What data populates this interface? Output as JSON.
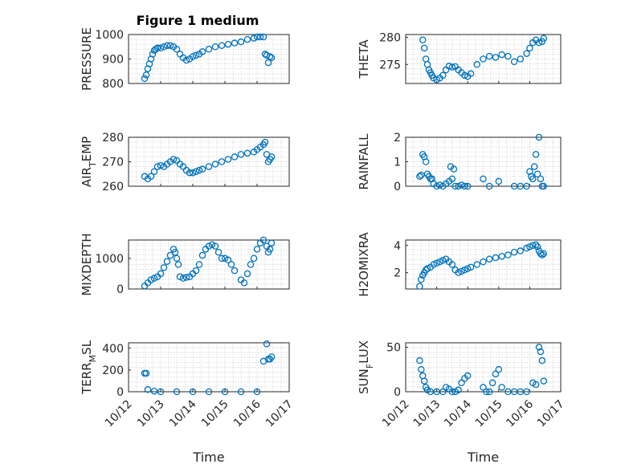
{
  "figure": {
    "title": "Figure 1 medium",
    "xlabel": "Time"
  },
  "colors": {
    "marker": "#0072BD",
    "axis": "#262626",
    "grid": "#d9d9d9"
  },
  "chart_data": [
    {
      "id": "pressure",
      "type": "scatter",
      "title": "Figure 1 medium",
      "ylabel": "PRESSURE",
      "ylim": [
        800,
        1000
      ],
      "yticks": [
        800,
        900,
        1000
      ],
      "xlim": [
        0,
        5
      ],
      "xtick_labels": [
        "10/12",
        "10/13",
        "10/14",
        "10/15",
        "10/16",
        "10/17"
      ],
      "x_values_are": "days since 10/12",
      "series": [
        {
          "name": "PRESSURE",
          "x": [
            0.5,
            0.55,
            0.6,
            0.65,
            0.7,
            0.75,
            0.8,
            0.85,
            0.9,
            1.0,
            1.1,
            1.2,
            1.3,
            1.4,
            1.5,
            1.6,
            1.7,
            1.8,
            1.9,
            2.0,
            2.1,
            2.2,
            2.3,
            2.5,
            2.7,
            2.9,
            3.1,
            3.3,
            3.5,
            3.7,
            3.9,
            4.0,
            4.1,
            4.2,
            4.25,
            4.3,
            4.35,
            4.4,
            4.45
          ],
          "y": [
            820,
            835,
            860,
            880,
            900,
            920,
            935,
            940,
            945,
            945,
            950,
            955,
            955,
            950,
            940,
            920,
            905,
            895,
            900,
            910,
            915,
            920,
            930,
            940,
            950,
            955,
            960,
            965,
            970,
            980,
            985,
            990,
            990,
            990,
            920,
            915,
            885,
            910,
            905
          ]
        }
      ]
    },
    {
      "id": "theta",
      "type": "scatter",
      "ylabel": "THETA",
      "ylim": [
        271.5,
        280.5
      ],
      "yticks": [
        275,
        280
      ],
      "xlim": [
        0,
        5
      ],
      "series": [
        {
          "name": "THETA",
          "x": [
            0.55,
            0.6,
            0.65,
            0.7,
            0.75,
            0.8,
            0.85,
            0.9,
            1.0,
            1.1,
            1.2,
            1.3,
            1.4,
            1.5,
            1.6,
            1.7,
            1.8,
            1.9,
            2.0,
            2.1,
            2.3,
            2.5,
            2.7,
            2.9,
            3.1,
            3.3,
            3.5,
            3.7,
            3.9,
            4.0,
            4.1,
            4.2,
            4.3,
            4.4,
            4.45
          ],
          "y": [
            279.5,
            278,
            276,
            275,
            274,
            273.5,
            273,
            272.5,
            272.2,
            272.5,
            273,
            274,
            274.7,
            274.5,
            274.6,
            274,
            273.5,
            273,
            272.8,
            273.3,
            275,
            276,
            276.5,
            276.3,
            276.8,
            276.5,
            275.5,
            276,
            277,
            278,
            279,
            279.5,
            279,
            279.2,
            279.8
          ]
        }
      ]
    },
    {
      "id": "air_temp",
      "type": "scatter",
      "ylabel": "AIR_TEMP",
      "ylabel_parts": [
        "AIR",
        "T",
        "EMP"
      ],
      "ylim": [
        260,
        280
      ],
      "yticks": [
        260,
        270,
        280
      ],
      "xlim": [
        0,
        5
      ],
      "series": [
        {
          "name": "AIR_TEMP",
          "x": [
            0.5,
            0.6,
            0.7,
            0.8,
            0.9,
            1.0,
            1.1,
            1.2,
            1.3,
            1.4,
            1.5,
            1.6,
            1.7,
            1.8,
            1.9,
            2.0,
            2.1,
            2.2,
            2.3,
            2.5,
            2.7,
            2.9,
            3.1,
            3.3,
            3.5,
            3.7,
            3.9,
            4.0,
            4.1,
            4.2,
            4.25,
            4.3,
            4.35,
            4.4,
            4.45
          ],
          "y": [
            264,
            263,
            264,
            266,
            268,
            268.5,
            268,
            269,
            270,
            271,
            270.5,
            269,
            268,
            266.5,
            265.5,
            265.5,
            266,
            266.5,
            267,
            268,
            269,
            270,
            271,
            272,
            273,
            273.5,
            274,
            275,
            276,
            277,
            278,
            273,
            270,
            271,
            272
          ]
        }
      ]
    },
    {
      "id": "rainfall",
      "type": "scatter",
      "ylabel": "RAINFALL",
      "ylim": [
        0,
        2
      ],
      "yticks": [
        0,
        1,
        2
      ],
      "xlim": [
        0,
        5
      ],
      "series": [
        {
          "name": "RAINFALL",
          "x": [
            0.45,
            0.5,
            0.55,
            0.6,
            0.65,
            0.7,
            0.75,
            0.8,
            0.85,
            0.9,
            1.0,
            1.1,
            1.2,
            1.3,
            1.4,
            1.45,
            1.5,
            1.55,
            1.6,
            1.7,
            1.8,
            1.9,
            2.0,
            2.5,
            2.7,
            3.0,
            3.5,
            3.7,
            3.9,
            4.0,
            4.05,
            4.1,
            4.15,
            4.2,
            4.25,
            4.3,
            4.35,
            4.4,
            4.45
          ],
          "y": [
            0.4,
            0.45,
            1.3,
            1.2,
            1.0,
            0.5,
            0.4,
            0.3,
            0.3,
            0.1,
            0,
            0.05,
            0,
            0.1,
            0.2,
            0.8,
            0.3,
            0.7,
            0,
            0,
            0.05,
            0,
            0,
            0.3,
            0,
            0.2,
            0,
            0,
            0,
            0.6,
            0.4,
            0.3,
            0.8,
            1.3,
            0.5,
            2.0,
            0.3,
            0,
            0
          ]
        }
      ]
    },
    {
      "id": "mixdepth",
      "type": "scatter",
      "ylabel": "MIXDEPTH",
      "ylim": [
        0,
        1600
      ],
      "yticks": [
        0,
        1000
      ],
      "xlim": [
        0,
        5
      ],
      "series": [
        {
          "name": "MIXDEPTH",
          "x": [
            0.5,
            0.6,
            0.7,
            0.8,
            0.9,
            1.0,
            1.1,
            1.2,
            1.3,
            1.4,
            1.45,
            1.5,
            1.55,
            1.6,
            1.7,
            1.8,
            1.9,
            2.0,
            2.1,
            2.2,
            2.3,
            2.4,
            2.5,
            2.6,
            2.7,
            2.8,
            2.9,
            3.0,
            3.1,
            3.2,
            3.3,
            3.5,
            3.6,
            3.7,
            3.8,
            3.9,
            4.0,
            4.1,
            4.2,
            4.3,
            4.35,
            4.4,
            4.45
          ],
          "y": [
            100,
            200,
            300,
            350,
            400,
            500,
            700,
            900,
            1100,
            1300,
            1200,
            1000,
            800,
            400,
            350,
            380,
            400,
            500,
            600,
            800,
            1100,
            1300,
            1400,
            1450,
            1400,
            1200,
            1000,
            1000,
            950,
            800,
            600,
            300,
            200,
            500,
            800,
            1000,
            1300,
            1500,
            1600,
            1400,
            1200,
            1300,
            1500
          ]
        }
      ]
    },
    {
      "id": "h2omixra",
      "type": "scatter",
      "ylabel": "H2OMIXRA",
      "ylim": [
        0.8,
        4.4
      ],
      "yticks": [
        2,
        4
      ],
      "xlim": [
        0,
        5
      ],
      "series": [
        {
          "name": "H2OMIXRA",
          "x": [
            0.45,
            0.5,
            0.55,
            0.6,
            0.65,
            0.7,
            0.8,
            0.9,
            1.0,
            1.1,
            1.2,
            1.3,
            1.4,
            1.5,
            1.6,
            1.7,
            1.8,
            1.9,
            2.0,
            2.1,
            2.3,
            2.5,
            2.7,
            2.9,
            3.1,
            3.3,
            3.5,
            3.7,
            3.9,
            4.0,
            4.1,
            4.2,
            4.25,
            4.3,
            4.35,
            4.4,
            4.45
          ],
          "y": [
            1.0,
            1.5,
            1.8,
            2.0,
            2.2,
            2.3,
            2.4,
            2.6,
            2.7,
            2.8,
            2.9,
            3.0,
            2.8,
            2.6,
            2.2,
            2.0,
            2.1,
            2.2,
            2.3,
            2.4,
            2.6,
            2.8,
            3.0,
            3.1,
            3.2,
            3.3,
            3.5,
            3.6,
            3.8,
            3.9,
            4.0,
            4.05,
            3.9,
            3.6,
            3.4,
            3.3,
            3.4
          ]
        }
      ]
    },
    {
      "id": "terr_msl",
      "type": "scatter",
      "ylabel": "TERR_MSL",
      "ylabel_parts": [
        "TERR",
        "M",
        "SL"
      ],
      "ylim": [
        0,
        450
      ],
      "yticks": [
        0,
        200,
        400
      ],
      "xlim": [
        0,
        5
      ],
      "series": [
        {
          "name": "TERR_MSL",
          "x": [
            0.5,
            0.55,
            0.6,
            0.8,
            1.0,
            1.5,
            2.0,
            2.5,
            3.0,
            3.5,
            4.0,
            4.2,
            4.3,
            4.35,
            4.4,
            4.45
          ],
          "y": [
            170,
            170,
            20,
            5,
            0,
            0,
            0,
            0,
            0,
            0,
            0,
            280,
            440,
            300,
            300,
            320
          ]
        }
      ]
    },
    {
      "id": "sunflux",
      "type": "scatter",
      "ylabel": "SUN_FLUX",
      "ylabel_parts": [
        "SUN",
        "F",
        "LUX"
      ],
      "ylim": [
        0,
        55
      ],
      "yticks": [
        0,
        50
      ],
      "xlim": [
        0,
        5
      ],
      "series": [
        {
          "name": "SUN_FLUX",
          "x": [
            0.45,
            0.5,
            0.55,
            0.6,
            0.65,
            0.7,
            0.8,
            1.0,
            1.2,
            1.3,
            1.4,
            1.5,
            1.6,
            1.7,
            1.8,
            1.9,
            2.0,
            2.5,
            2.6,
            2.7,
            2.8,
            2.9,
            3.0,
            3.1,
            3.3,
            3.5,
            3.7,
            3.9,
            4.1,
            4.2,
            4.3,
            4.35,
            4.4,
            4.45
          ],
          "y": [
            35,
            25,
            18,
            12,
            5,
            2,
            0,
            0,
            0,
            5,
            3,
            0,
            0,
            2,
            10,
            15,
            18,
            5,
            0,
            0,
            10,
            20,
            25,
            5,
            0,
            0,
            0,
            0,
            10,
            8,
            50,
            45,
            35,
            12
          ]
        }
      ]
    }
  ]
}
